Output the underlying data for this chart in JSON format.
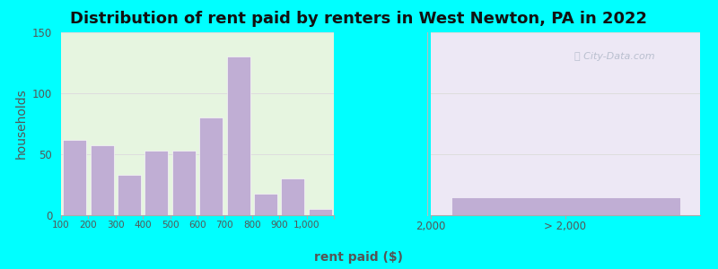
{
  "title": "Distribution of rent paid by renters in West Newton, PA in 2022",
  "xlabel": "rent paid ($)",
  "ylabel": "households",
  "bar_color": "#c0aed4",
  "background_outer": "#00ffff",
  "background_inner_left": "#e6f5e0",
  "background_inner_right": "#ede8f5",
  "bar_values": [
    62,
    57,
    33,
    53,
    53,
    80,
    130,
    18,
    30,
    5
  ],
  "bar_labels_x": [
    "100",
    "200",
    "300",
    "400",
    "500",
    "600",
    "700",
    "800",
    "900",
    "1,000"
  ],
  "gt2000_bar_value": 15,
  "ylim": [
    0,
    150
  ],
  "yticks": [
    0,
    50,
    100,
    150
  ],
  "title_fontsize": 13,
  "axis_label_fontsize": 10,
  "tick_fontsize": 8.5
}
